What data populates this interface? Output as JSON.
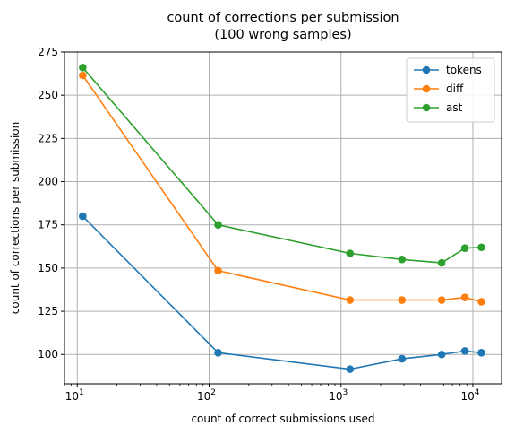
{
  "chart_data": {
    "type": "line",
    "title": "count of corrections per submission\n(100 wrong samples)",
    "xlabel": "count of correct submissions used",
    "ylabel": "count of corrections per submission",
    "xscale": "log",
    "xlim": [
      8,
      16500
    ],
    "ylim": [
      83,
      275
    ],
    "grid": true,
    "legend_position": "top-right",
    "x": [
      11,
      117,
      1170,
      2900,
      5800,
      8700,
      11600
    ],
    "y_ticks": [
      100,
      125,
      150,
      175,
      200,
      225,
      250,
      275
    ],
    "y_tick_labels": [
      "100",
      "125",
      "150",
      "175",
      "200",
      "225",
      "250",
      "275"
    ],
    "x_ticks": [
      10,
      100,
      1000,
      10000
    ],
    "x_tick_labels": [
      [
        "10",
        "1"
      ],
      [
        "10",
        "2"
      ],
      [
        "10",
        "3"
      ],
      [
        "10",
        "4"
      ]
    ],
    "series": [
      {
        "name": "tokens",
        "color": "#1f77b4",
        "values": [
          180,
          101,
          91.5,
          97.5,
          100,
          102,
          101
        ]
      },
      {
        "name": "diff",
        "color": "#ff7f0e",
        "values": [
          261.5,
          148.5,
          131.5,
          131.5,
          131.5,
          133,
          130.5
        ]
      },
      {
        "name": "ast",
        "color": "#2ca02c",
        "values": [
          266,
          175,
          158.5,
          155,
          153,
          161.5,
          162
        ]
      }
    ]
  }
}
